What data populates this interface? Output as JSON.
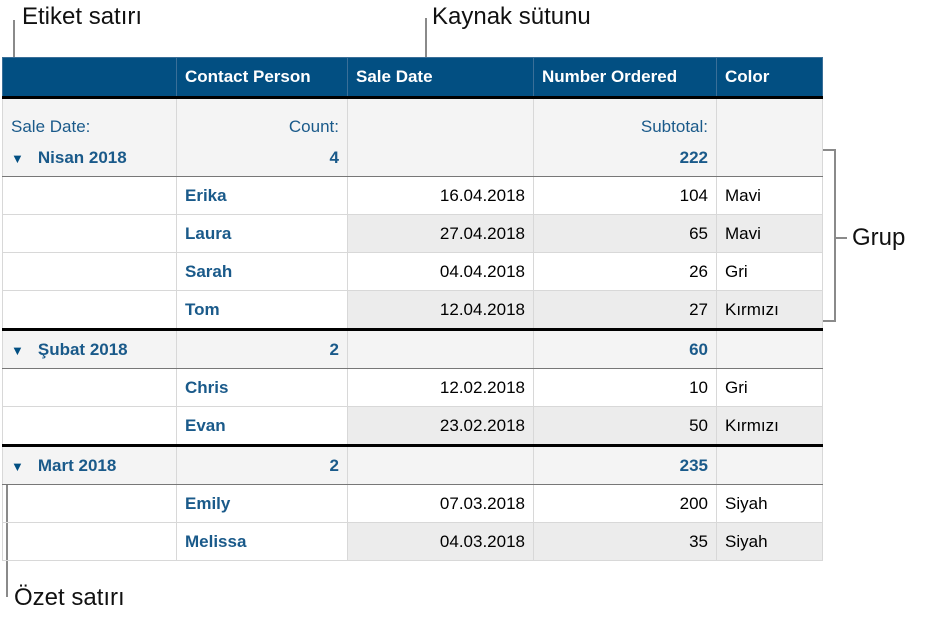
{
  "callouts": {
    "label_row": "Etiket satırı",
    "source_column": "Kaynak sütunu",
    "group": "Grup",
    "summary_row": "Özet satırı"
  },
  "table": {
    "headers": [
      "",
      "Contact Person",
      "Sale Date",
      "Number Ordered",
      "Color"
    ],
    "label_row": {
      "first": "Sale Date:",
      "count": "Count:",
      "subtotal": "Subtotal:"
    },
    "groups": [
      {
        "name": "Nisan 2018",
        "count": "4",
        "subtotal": "222",
        "rows": [
          {
            "person": "Erika",
            "date": "16.04.2018",
            "number": "104",
            "color": "Mavi"
          },
          {
            "person": "Laura",
            "date": "27.04.2018",
            "number": "65",
            "color": "Mavi"
          },
          {
            "person": "Sarah",
            "date": "04.04.2018",
            "number": "26",
            "color": "Gri"
          },
          {
            "person": "Tom",
            "date": "12.04.2018",
            "number": "27",
            "color": "Kırmızı"
          }
        ]
      },
      {
        "name": "Şubat 2018",
        "count": "2",
        "subtotal": "60",
        "rows": [
          {
            "person": "Chris",
            "date": "12.02.2018",
            "number": "10",
            "color": "Gri"
          },
          {
            "person": "Evan",
            "date": "23.02.2018",
            "number": "50",
            "color": "Kırmızı"
          }
        ]
      },
      {
        "name": "Mart 2018",
        "count": "2",
        "subtotal": "235",
        "rows": [
          {
            "person": "Emily",
            "date": "07.03.2018",
            "number": "200",
            "color": "Siyah"
          },
          {
            "person": "Melissa",
            "date": "04.03.2018",
            "number": "35",
            "color": "Siyah"
          }
        ]
      }
    ]
  },
  "colors": {
    "header": "#024f82",
    "accent_text": "#1a5a8a",
    "alt_row": "#ececec"
  },
  "icons": {
    "disclosure": "triangle-down-icon"
  }
}
